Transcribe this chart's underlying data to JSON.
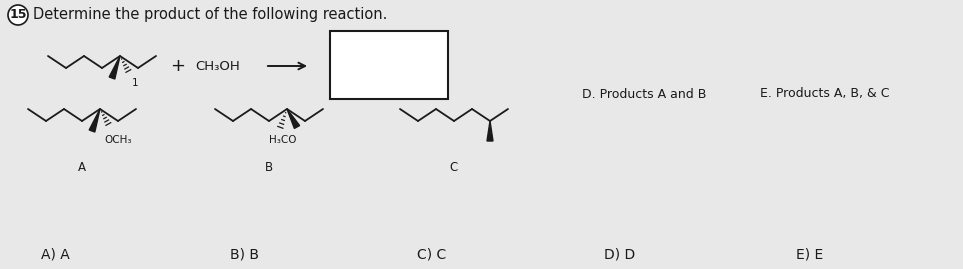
{
  "title_number": "15",
  "title_text": "Determine the product of the following reaction.",
  "reagent_text": "CH₃OH",
  "option_A_label": "A",
  "option_B_label": "B",
  "option_C_label": "C",
  "option_D_text": "D. Products A and B",
  "option_E_text": "E. Products A, B, & C",
  "answer_labels": [
    "A) A",
    "B) B",
    "C) C",
    "D) D",
    "E) E"
  ],
  "bg_color": "#e8e8e8",
  "line_color": "#1a1a1a",
  "font_size_title": 10.5,
  "font_size_small": 8,
  "font_size_answer": 10
}
